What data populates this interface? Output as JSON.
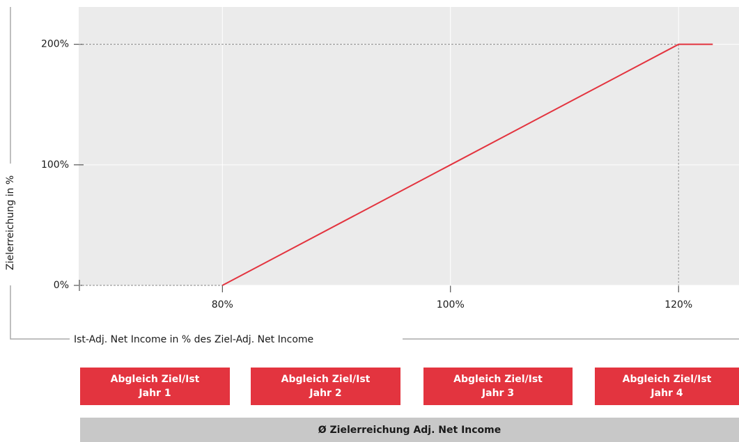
{
  "chart_data": {
    "type": "line",
    "x_label": "Ist-Adj. Net Income  in % des Ziel-Adj. Net Income",
    "y_label": "Zielerreichung in %",
    "x": [
      80,
      120,
      123
    ],
    "series": [
      {
        "color": "#e3343f",
        "values": [
          0,
          200,
          200
        ]
      }
    ],
    "xlim": [
      67.4,
      125.3
    ],
    "ylim": [
      0,
      231
    ],
    "xticks": [
      {
        "value": 80,
        "label": "80%"
      },
      {
        "value": 100,
        "label": "100%"
      },
      {
        "value": 120,
        "label": "120%"
      }
    ],
    "yticks": [
      {
        "value": 0,
        "label": "0%"
      },
      {
        "value": 100,
        "label": "100%"
      },
      {
        "value": 200,
        "label": "200%"
      }
    ],
    "grid": true
  },
  "boxes": [
    {
      "lines": [
        "Abgleich Ziel/Ist",
        "Jahr 1"
      ]
    },
    {
      "lines": [
        "Abgleich Ziel/Ist",
        "Jahr 2"
      ]
    },
    {
      "lines": [
        "Abgleich Ziel/Ist",
        "Jahr 3"
      ]
    },
    {
      "lines": [
        "Abgleich Ziel/Ist",
        "Jahr 4"
      ]
    }
  ],
  "footer": "Ø Zielerreichung Adj. Net Income"
}
